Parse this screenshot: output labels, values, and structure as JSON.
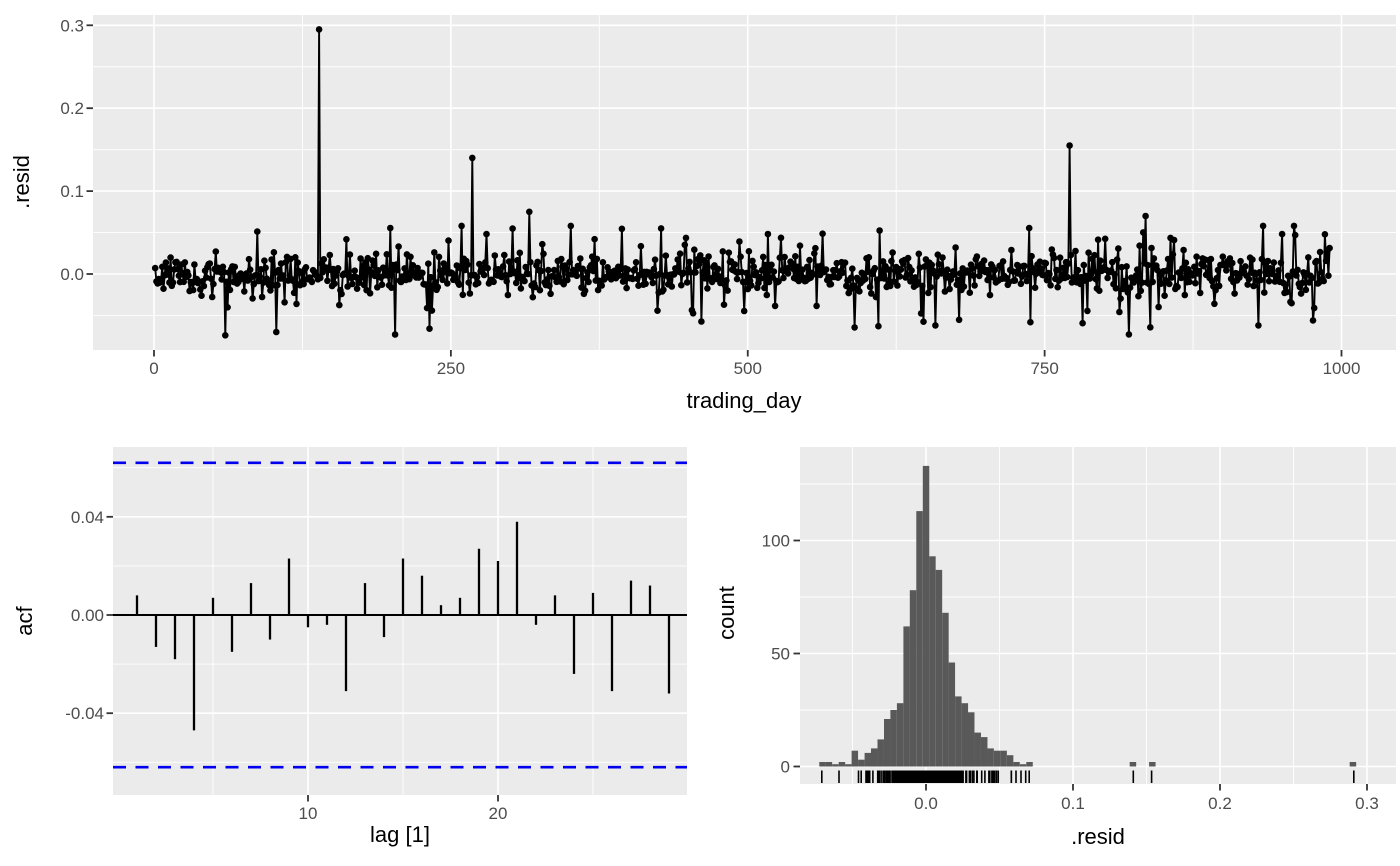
{
  "colors": {
    "page_bg": "#ffffff",
    "panel_bg": "#ebebeb",
    "grid": "#ffffff",
    "data_black": "#000000",
    "hist_fill": "#595959",
    "conf_dashed_blue": "#0000ee",
    "tick_text": "#4d4d4d",
    "tick_mark": "#333333",
    "axis_title_text": "#000000"
  },
  "chart_data": [
    {
      "type": "line",
      "name": "innovation-residuals-time-plot",
      "xlabel": "trading_day",
      "ylabel": ".resid",
      "xlim": [
        -51,
        1045
      ],
      "ylim": [
        -0.092,
        0.312
      ],
      "x_ticks": [
        0,
        250,
        500,
        750,
        1000
      ],
      "x_tick_labels": [
        "0",
        "250",
        "500",
        "750",
        "1000"
      ],
      "x_minor": [
        125,
        375,
        625,
        875
      ],
      "y_ticks": [
        0.0,
        0.1,
        0.2,
        0.3
      ],
      "y_tick_labels": [
        "0.0",
        "0.1",
        "0.2",
        "0.3"
      ],
      "y_minor": [
        -0.05,
        0.05,
        0.15,
        0.25
      ],
      "grid": true,
      "n_points": 990,
      "noise": {
        "seed": 1337,
        "sd_core": 0.0105,
        "sd_tail": 0.03,
        "tail_prob": 0.18,
        "clamp": [
          -0.074,
          0.058
        ]
      },
      "outliers": [
        [
          139,
          0.295
        ],
        [
          268,
          0.14
        ],
        [
          316,
          0.075
        ],
        [
          771,
          0.155
        ],
        [
          835,
          0.07
        ],
        [
          203,
          -0.073
        ],
        [
          232,
          -0.066
        ],
        [
          610,
          -0.063
        ],
        [
          658,
          -0.062
        ],
        [
          930,
          -0.062
        ],
        [
          976,
          -0.056
        ]
      ]
    },
    {
      "type": "bar",
      "name": "acf-plot",
      "xlabel": "lag [1]",
      "ylabel": "acf",
      "xlim": [
        0,
        30
      ],
      "ylim": [
        -0.0733,
        0.0684
      ],
      "x_ticks": [
        10,
        20
      ],
      "x_tick_labels": [
        "10",
        "20"
      ],
      "x_minor": [
        5,
        15,
        25
      ],
      "y_ticks": [
        0.04,
        0.0,
        -0.04
      ],
      "y_tick_labels": [
        "0.04",
        "0.00",
        "-0.04"
      ],
      "y_minor": [
        0.06,
        0.02,
        -0.02,
        -0.06
      ],
      "grid": true,
      "lags": [
        1,
        2,
        3,
        4,
        5,
        6,
        7,
        8,
        9,
        10,
        11,
        12,
        13,
        14,
        15,
        16,
        17,
        18,
        19,
        20,
        21,
        22,
        23,
        24,
        25,
        26,
        27,
        28,
        29
      ],
      "values": [
        0.008,
        -0.013,
        -0.018,
        -0.047,
        0.007,
        -0.015,
        0.013,
        -0.01,
        0.023,
        -0.005,
        -0.004,
        -0.031,
        0.013,
        -0.009,
        0.023,
        0.016,
        0.004,
        0.007,
        0.027,
        0.022,
        0.038,
        -0.004,
        0.008,
        -0.024,
        0.009,
        -0.031,
        0.014,
        0.012,
        -0.032
      ],
      "conf_bound": 0.062,
      "conf_style": "dashed-blue"
    },
    {
      "type": "histogram",
      "name": "residual-histogram",
      "xlabel": ".resid",
      "ylabel": "count",
      "xlim": [
        -0.086,
        0.32
      ],
      "ylim": [
        0,
        141
      ],
      "x_ticks": [
        0.0,
        0.1,
        0.2,
        0.3
      ],
      "x_tick_labels": [
        "0.0",
        "0.1",
        "0.2",
        "0.3"
      ],
      "x_minor": [
        -0.05,
        0.05,
        0.15,
        0.25
      ],
      "y_ticks": [
        0,
        50,
        100
      ],
      "y_tick_labels": [
        "0",
        "50",
        "100"
      ],
      "y_minor": [
        25,
        75,
        125
      ],
      "grid": true,
      "bin_width": 0.0044,
      "bins": [
        [
          -0.0704,
          2
        ],
        [
          -0.066,
          2
        ],
        [
          -0.0616,
          1
        ],
        [
          -0.0572,
          2
        ],
        [
          -0.0528,
          1
        ],
        [
          -0.0484,
          7
        ],
        [
          -0.044,
          3
        ],
        [
          -0.0396,
          6
        ],
        [
          -0.0352,
          8
        ],
        [
          -0.0308,
          12
        ],
        [
          -0.0264,
          21
        ],
        [
          -0.022,
          25
        ],
        [
          -0.0176,
          28
        ],
        [
          -0.0132,
          62
        ],
        [
          -0.0088,
          78
        ],
        [
          -0.0044,
          113
        ],
        [
          0.0,
          133
        ],
        [
          0.0044,
          93
        ],
        [
          0.0088,
          87
        ],
        [
          0.0132,
          68
        ],
        [
          0.0176,
          46
        ],
        [
          0.022,
          31
        ],
        [
          0.0264,
          28
        ],
        [
          0.0308,
          24
        ],
        [
          0.0352,
          15
        ],
        [
          0.0396,
          13
        ],
        [
          0.044,
          8
        ],
        [
          0.0484,
          7
        ],
        [
          0.0528,
          7
        ],
        [
          0.0572,
          5
        ],
        [
          0.0616,
          2
        ],
        [
          0.066,
          1
        ],
        [
          0.0704,
          2
        ],
        [
          0.1408,
          2
        ],
        [
          0.154,
          2
        ],
        [
          0.2904,
          2
        ]
      ],
      "rug": {
        "n": 540,
        "seed": 99,
        "extra_values": [
          0.0612,
          0.0646,
          0.0678,
          0.0702,
          0.141,
          0.1535,
          0.291
        ]
      }
    }
  ]
}
